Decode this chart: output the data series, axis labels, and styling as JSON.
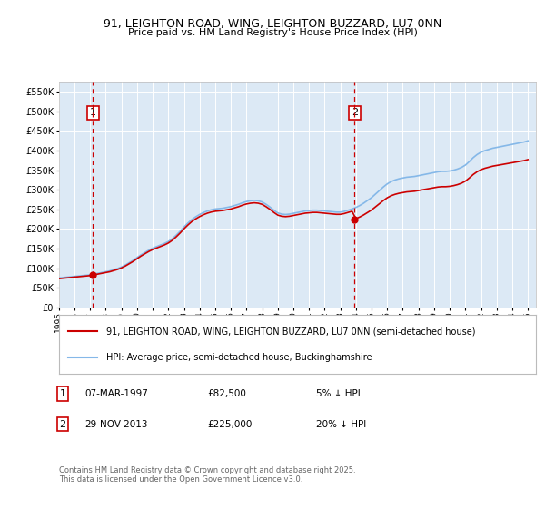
{
  "title": "91, LEIGHTON ROAD, WING, LEIGHTON BUZZARD, LU7 0NN",
  "subtitle": "Price paid vs. HM Land Registry's House Price Index (HPI)",
  "background_color": "#dce9f5",
  "hpi_color": "#85b8e8",
  "price_color": "#cc0000",
  "vline_color": "#cc0000",
  "grid_color": "#ffffff",
  "sale1_date": 1997.18,
  "sale1_price": 82500,
  "sale1_label": "1",
  "sale2_date": 2013.91,
  "sale2_price": 225000,
  "sale2_label": "2",
  "ylim_min": 0,
  "ylim_max": 577000,
  "ytick_step": 50000,
  "legend_label_red": "91, LEIGHTON ROAD, WING, LEIGHTON BUZZARD, LU7 0NN (semi-detached house)",
  "legend_label_blue": "HPI: Average price, semi-detached house, Buckinghamshire",
  "footer": "Contains HM Land Registry data © Crown copyright and database right 2025.\nThis data is licensed under the Open Government Licence v3.0.",
  "xmin": 1995,
  "xmax": 2025.5,
  "hpi_years": [
    1995.0,
    1995.25,
    1995.5,
    1995.75,
    1996.0,
    1996.25,
    1996.5,
    1996.75,
    1997.0,
    1997.25,
    1997.5,
    1997.75,
    1998.0,
    1998.25,
    1998.5,
    1998.75,
    1999.0,
    1999.25,
    1999.5,
    1999.75,
    2000.0,
    2000.25,
    2000.5,
    2000.75,
    2001.0,
    2001.25,
    2001.5,
    2001.75,
    2002.0,
    2002.25,
    2002.5,
    2002.75,
    2003.0,
    2003.25,
    2003.5,
    2003.75,
    2004.0,
    2004.25,
    2004.5,
    2004.75,
    2005.0,
    2005.25,
    2005.5,
    2005.75,
    2006.0,
    2006.25,
    2006.5,
    2006.75,
    2007.0,
    2007.25,
    2007.5,
    2007.75,
    2008.0,
    2008.25,
    2008.5,
    2008.75,
    2009.0,
    2009.25,
    2009.5,
    2009.75,
    2010.0,
    2010.25,
    2010.5,
    2010.75,
    2011.0,
    2011.25,
    2011.5,
    2011.75,
    2012.0,
    2012.25,
    2012.5,
    2012.75,
    2013.0,
    2013.25,
    2013.5,
    2013.75,
    2014.0,
    2014.25,
    2014.5,
    2014.75,
    2015.0,
    2015.25,
    2015.5,
    2015.75,
    2016.0,
    2016.25,
    2016.5,
    2016.75,
    2017.0,
    2017.25,
    2017.5,
    2017.75,
    2018.0,
    2018.25,
    2018.5,
    2018.75,
    2019.0,
    2019.25,
    2019.5,
    2019.75,
    2020.0,
    2020.25,
    2020.5,
    2020.75,
    2021.0,
    2021.25,
    2021.5,
    2021.75,
    2022.0,
    2022.25,
    2022.5,
    2022.75,
    2023.0,
    2023.25,
    2023.5,
    2023.75,
    2024.0,
    2024.25,
    2024.5,
    2024.75,
    2025.0
  ],
  "hpi_values": [
    75000,
    76000,
    77000,
    78000,
    79000,
    80000,
    81000,
    82000,
    83000,
    85000,
    87000,
    89000,
    91000,
    93000,
    96000,
    99000,
    103000,
    108000,
    114000,
    120000,
    127000,
    134000,
    140000,
    146000,
    151000,
    155000,
    159000,
    163000,
    168000,
    175000,
    184000,
    194000,
    205000,
    215000,
    224000,
    231000,
    237000,
    242000,
    246000,
    249000,
    251000,
    252000,
    253000,
    255000,
    257000,
    260000,
    263000,
    267000,
    270000,
    272000,
    273000,
    272000,
    269000,
    263000,
    256000,
    248000,
    241000,
    238000,
    237000,
    238000,
    240000,
    242000,
    244000,
    246000,
    247000,
    248000,
    248000,
    247000,
    246000,
    245000,
    244000,
    243000,
    243000,
    245000,
    248000,
    251000,
    255000,
    260000,
    266000,
    273000,
    280000,
    289000,
    298000,
    307000,
    315000,
    321000,
    325000,
    328000,
    330000,
    332000,
    333000,
    334000,
    336000,
    338000,
    340000,
    342000,
    344000,
    346000,
    347000,
    347000,
    348000,
    350000,
    353000,
    357000,
    363000,
    372000,
    382000,
    390000,
    396000,
    400000,
    403000,
    406000,
    408000,
    410000,
    412000,
    414000,
    416000,
    418000,
    420000,
    422000,
    425000
  ]
}
